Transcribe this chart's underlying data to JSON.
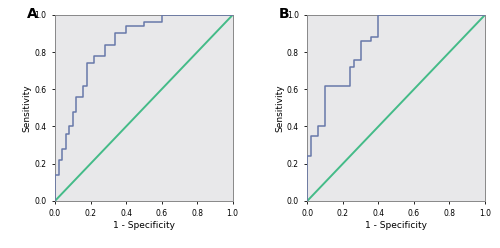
{
  "panel_A_label": "A",
  "panel_B_label": "B",
  "xlabel": "1 - Specificity",
  "ylabel": "Sensitivity",
  "xlim": [
    0.0,
    1.0
  ],
  "ylim": [
    0.0,
    1.0
  ],
  "xticks": [
    0.0,
    0.2,
    0.4,
    0.6,
    0.8,
    1.0
  ],
  "yticks": [
    0.0,
    0.2,
    0.4,
    0.6,
    0.8,
    1.0
  ],
  "bg_color": "#ffffff",
  "plot_bg_color": "#e8e8ea",
  "roc_color": "#6878aa",
  "diag_color": "#44bb88",
  "roc_linewidth": 1.1,
  "diag_linewidth": 1.4,
  "panel_A_fpr": [
    0.0,
    0.0,
    0.0,
    0.02,
    0.02,
    0.04,
    0.04,
    0.06,
    0.06,
    0.08,
    0.08,
    0.1,
    0.1,
    0.12,
    0.12,
    0.16,
    0.16,
    0.18,
    0.18,
    0.22,
    0.22,
    0.28,
    0.28,
    0.34,
    0.34,
    0.4,
    0.4,
    0.5,
    0.5,
    0.6,
    0.6,
    1.0
  ],
  "panel_A_tpr": [
    0.0,
    0.05,
    0.14,
    0.14,
    0.22,
    0.22,
    0.28,
    0.28,
    0.36,
    0.36,
    0.4,
    0.4,
    0.48,
    0.48,
    0.56,
    0.56,
    0.62,
    0.62,
    0.74,
    0.74,
    0.78,
    0.78,
    0.84,
    0.84,
    0.9,
    0.9,
    0.94,
    0.94,
    0.96,
    0.96,
    1.0,
    1.0
  ],
  "panel_B_fpr": [
    0.0,
    0.0,
    0.02,
    0.02,
    0.06,
    0.06,
    0.1,
    0.1,
    0.24,
    0.24,
    0.26,
    0.26,
    0.3,
    0.3,
    0.36,
    0.36,
    0.4,
    0.4,
    1.0
  ],
  "panel_B_tpr": [
    0.0,
    0.24,
    0.24,
    0.35,
    0.35,
    0.4,
    0.4,
    0.62,
    0.62,
    0.72,
    0.72,
    0.76,
    0.76,
    0.86,
    0.86,
    0.88,
    0.88,
    1.0,
    1.0
  ]
}
